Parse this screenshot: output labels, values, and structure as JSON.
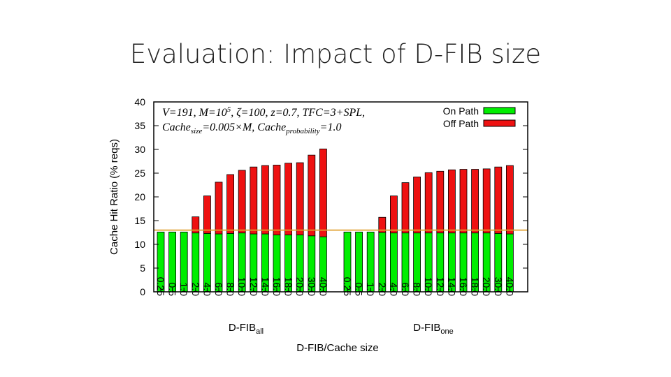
{
  "slide": {
    "title": "Evaluation: Impact of D-FIB size"
  },
  "colors": {
    "on_path": "#00ee00",
    "off_path": "#ee1111",
    "reference_line": "#e0a030",
    "bar_edge": "#000000"
  },
  "chart_data": {
    "type": "bar",
    "stacked": true,
    "ylabel": "Cache Hit Ratio (% reqs)",
    "xlabel": "D-FIB/Cache size",
    "ylim": [
      0,
      40
    ],
    "yticks": [
      0,
      5,
      10,
      15,
      20,
      25,
      30,
      35,
      40
    ],
    "reference_line_y": 13,
    "legend": {
      "position": "top-right",
      "entries": [
        "On Path",
        "Off Path"
      ]
    },
    "annotation": {
      "line1": {
        "a": "V=191, M=10",
        "sup": "5",
        "b": ", ζ=100, z=0.7, TFC=3+SPL,"
      },
      "line2": {
        "a": "Cache",
        "sub1": "size",
        "b": "=0.005×M, Cache",
        "sub2": "probability",
        "c": "=1.0"
      }
    },
    "groups": [
      {
        "label": "D-FIB",
        "label_sub": "all",
        "categories": [
          "0.25",
          "0.5",
          "1.0",
          "2.0",
          "4.0",
          "6.0",
          "8.0",
          "10.0",
          "12.0",
          "14.0",
          "16.0",
          "18.0",
          "20.0",
          "30.0",
          "40.0"
        ],
        "series": [
          {
            "name": "On Path",
            "values": [
              12.6,
              12.6,
              12.6,
              12.4,
              12.3,
              12.2,
              12.3,
              12.4,
              12.2,
              12.2,
              12.0,
              12.0,
              12.0,
              11.8,
              11.6
            ]
          },
          {
            "name": "Off Path",
            "values": [
              0,
              0,
              0,
              3.4,
              7.9,
              10.9,
              12.4,
              13.2,
              14.1,
              14.4,
              14.7,
              15.1,
              15.2,
              17.0,
              18.5
            ]
          }
        ]
      },
      {
        "label": "D-FIB",
        "label_sub": "one",
        "categories": [
          "0.25",
          "0.5",
          "1.0",
          "2.0",
          "4.0",
          "6.0",
          "8.0",
          "10.0",
          "12.0",
          "14.0",
          "16.0",
          "18.0",
          "20.0",
          "30.0",
          "40.0"
        ],
        "series": [
          {
            "name": "On Path",
            "values": [
              12.6,
              12.6,
              12.6,
              12.5,
              12.4,
              12.4,
              12.4,
              12.4,
              12.4,
              12.4,
              12.4,
              12.4,
              12.4,
              12.3,
              12.2
            ]
          },
          {
            "name": "Off Path",
            "values": [
              0,
              0,
              0,
              3.2,
              7.8,
              10.6,
              11.8,
              12.7,
              13.0,
              13.3,
              13.4,
              13.4,
              13.5,
              14.0,
              14.4
            ]
          }
        ]
      }
    ]
  }
}
